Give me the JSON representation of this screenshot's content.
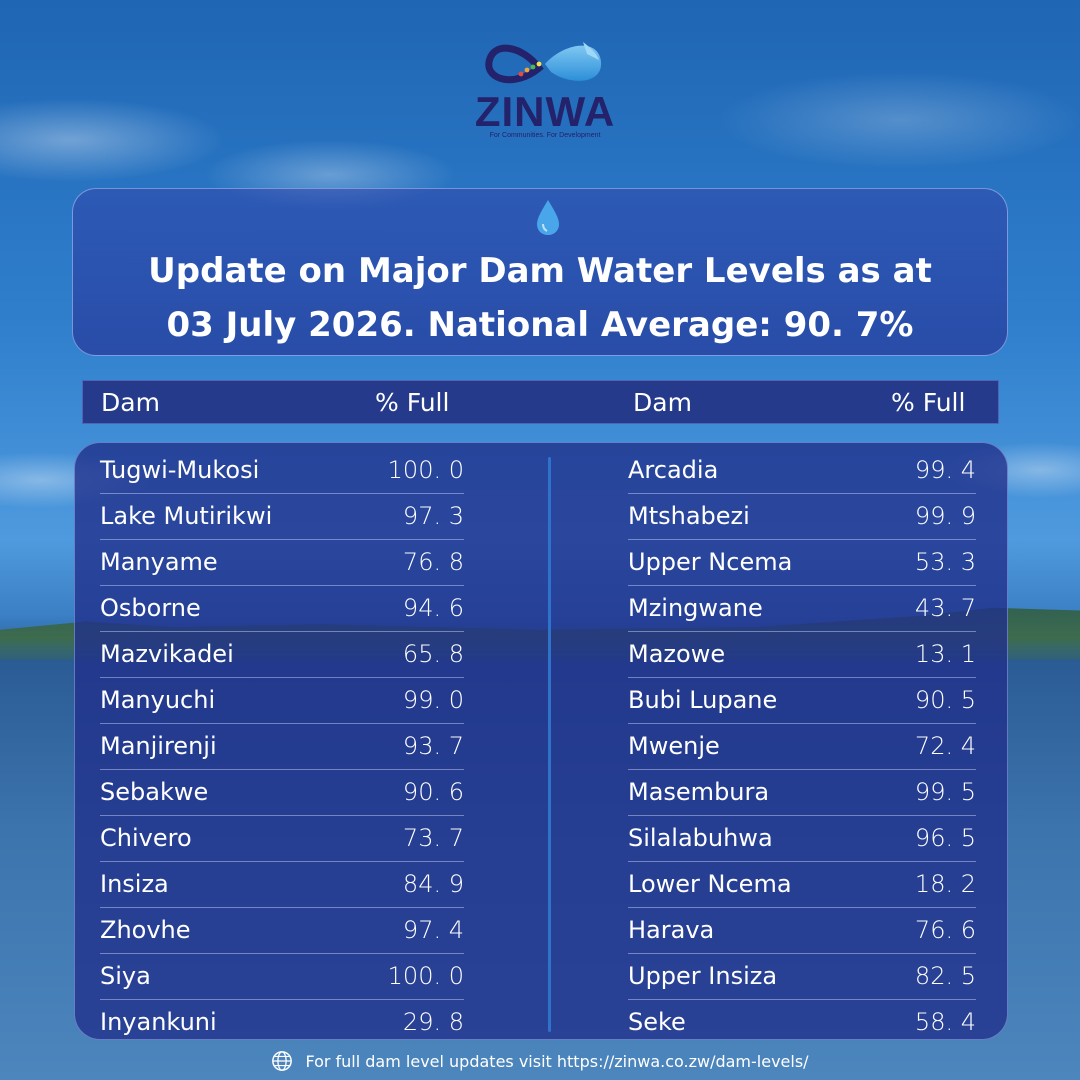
{
  "logo": {
    "name": "ZINWA",
    "tagline": "For Communities. For Development"
  },
  "title": {
    "line1": "Update on Major Dam Water Levels as at",
    "line2": "03 July 2026. National Average: 90. 7%"
  },
  "headers": {
    "left_dam": "Dam",
    "left_full": "% Full",
    "right_dam": "Dam",
    "right_full": "% Full"
  },
  "left_dams": [
    {
      "name": "Tugwi-Mukosi",
      "value": "100. 0"
    },
    {
      "name": "Lake Mutirikwi",
      "value": "97. 3"
    },
    {
      "name": "Manyame",
      "value": "76. 8"
    },
    {
      "name": "Osborne",
      "value": "94. 6"
    },
    {
      "name": "Mazvikadei",
      "value": "65. 8"
    },
    {
      "name": "Manyuchi",
      "value": "99. 0"
    },
    {
      "name": "Manjirenji",
      "value": "93. 7"
    },
    {
      "name": "Sebakwe",
      "value": "90. 6"
    },
    {
      "name": "Chivero",
      "value": "73. 7"
    },
    {
      "name": "Insiza",
      "value": "84. 9"
    },
    {
      "name": "Zhovhe",
      "value": "97. 4"
    },
    {
      "name": "Siya",
      "value": "100. 0"
    },
    {
      "name": "Inyankuni",
      "value": "29. 8"
    }
  ],
  "right_dams": [
    {
      "name": "Arcadia",
      "value": "99. 4"
    },
    {
      "name": "Mtshabezi",
      "value": "99. 9"
    },
    {
      "name": "Upper Ncema",
      "value": "53. 3"
    },
    {
      "name": "Mzingwane",
      "value": "43. 7"
    },
    {
      "name": "Mazowe",
      "value": "13. 1"
    },
    {
      "name": "Bubi Lupane",
      "value": "90. 5"
    },
    {
      "name": "Mwenje",
      "value": "72. 4"
    },
    {
      "name": "Masembura",
      "value": "99. 5"
    },
    {
      "name": "Silalabuhwa",
      "value": "96. 5"
    },
    {
      "name": "Lower Ncema",
      "value": "18. 2"
    },
    {
      "name": "Harava",
      "value": "76. 6"
    },
    {
      "name": "Upper Insiza",
      "value": "82. 5"
    },
    {
      "name": "Seke",
      "value": "58. 4"
    }
  ],
  "footer": {
    "text": "For full dam level updates visit https://zinwa.co.zw/dam-levels/",
    "icon": "globe-icon"
  },
  "colors": {
    "panel": "#20308a",
    "logo_navy": "#23226a",
    "divider": "#2f72c9"
  }
}
